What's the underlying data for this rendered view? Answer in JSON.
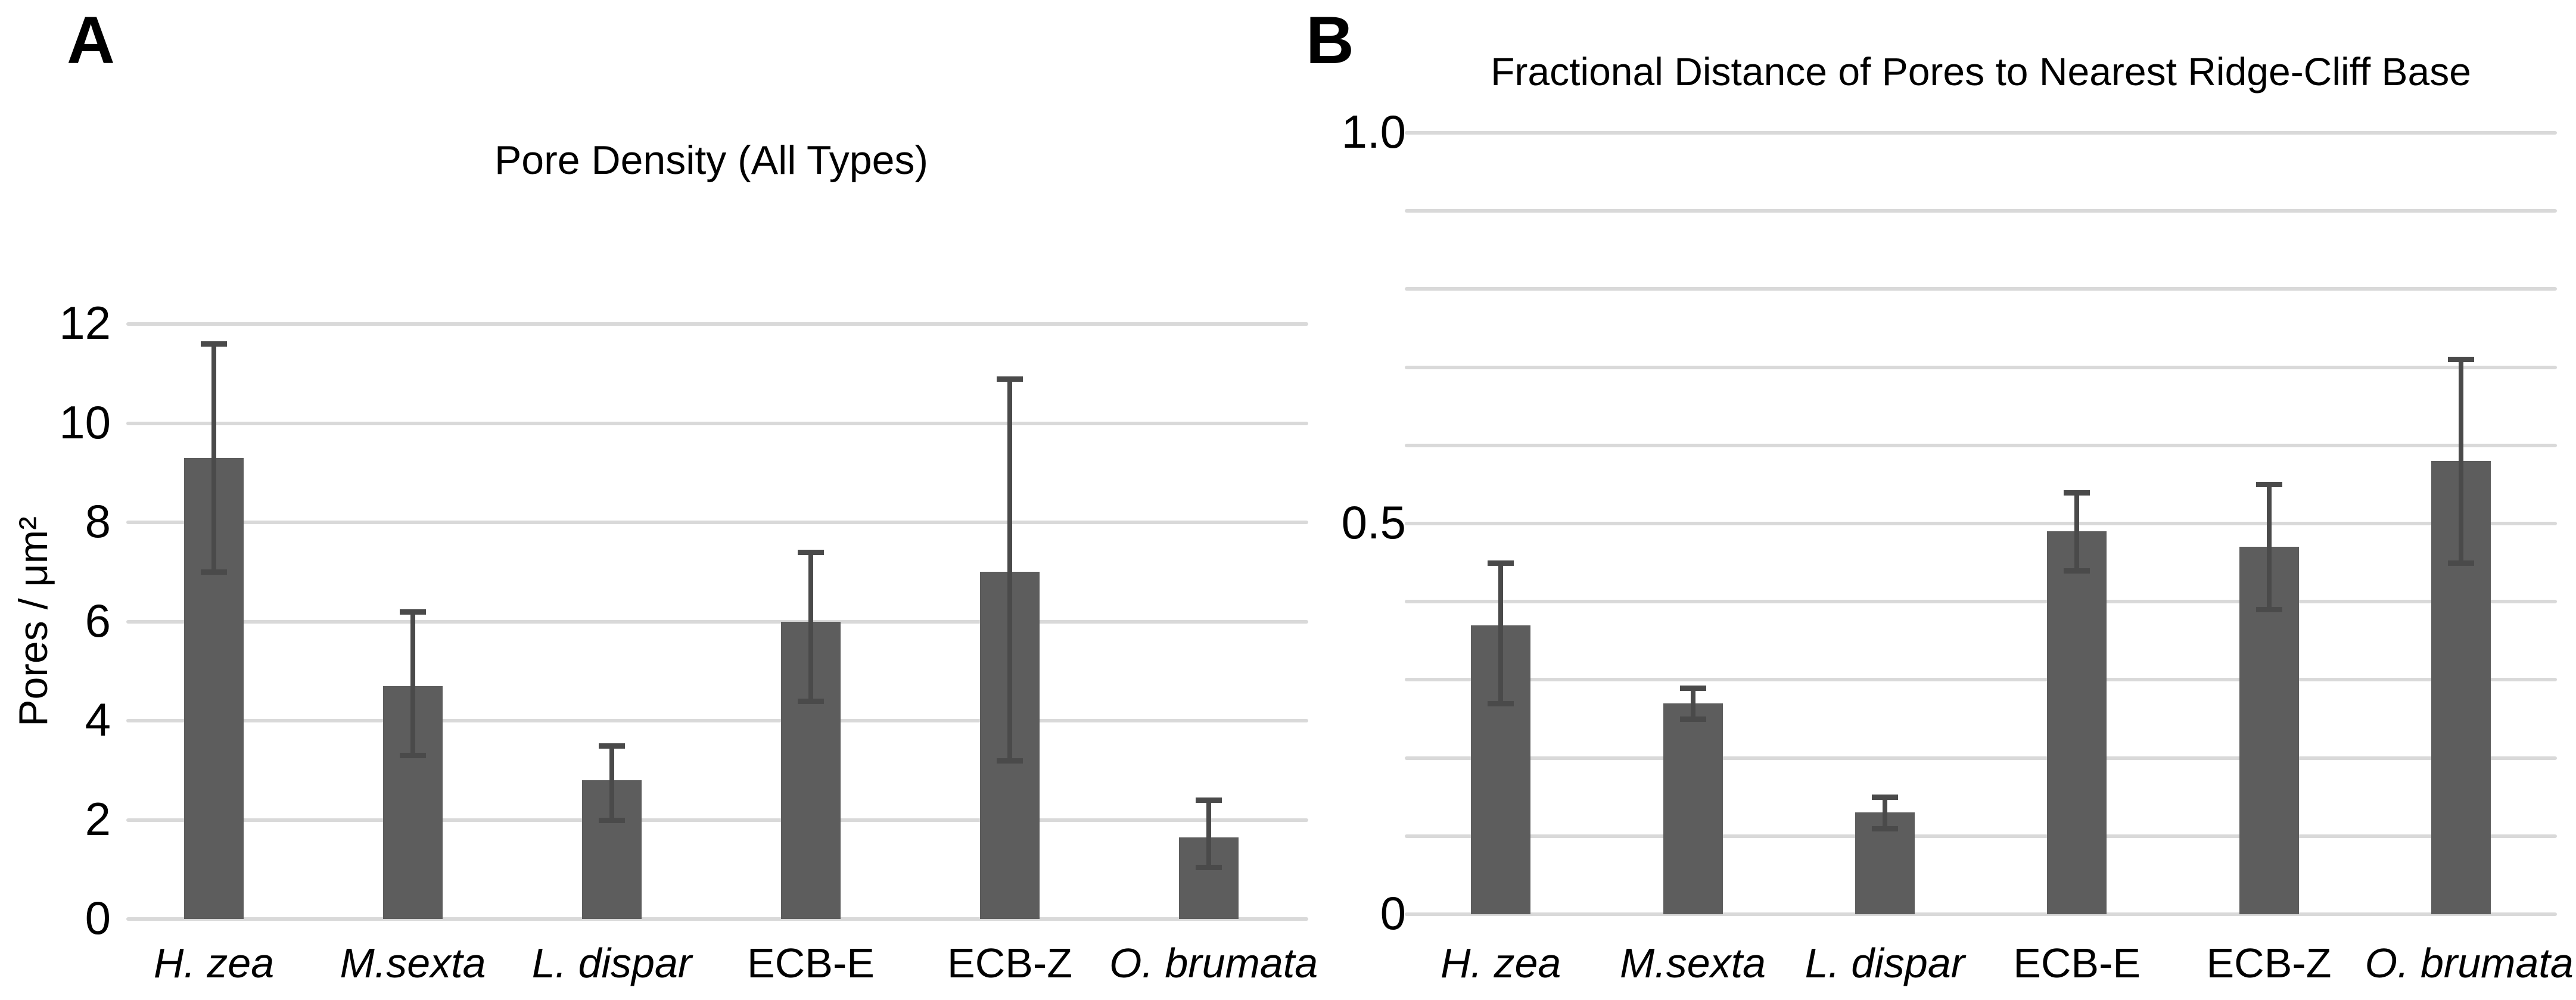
{
  "figure": {
    "background": "#ffffff",
    "bar_color": "#5d5d5d",
    "error_bar_color": "#4a4a4a",
    "gridline_color": "#d9d9d9",
    "text_color": "#000000"
  },
  "chart_data": [
    {
      "type": "bar",
      "panel_label": "A",
      "title": "Pore Density (All Types)",
      "ylabel": "Pores / μm²",
      "xlabel": "",
      "ylim": [
        0,
        12
      ],
      "grid": true,
      "legend": "none",
      "gridline_values": [
        0,
        2,
        4,
        6,
        8,
        10,
        12
      ],
      "ytick_values": [
        0,
        2,
        4,
        6,
        8,
        10,
        12
      ],
      "ytick_labels": [
        "0",
        "2",
        "4",
        "6",
        "8",
        "10",
        "12"
      ],
      "categories": [
        "H. zea",
        "M.sexta",
        "L. dispar",
        "ECB-E",
        "ECB-Z",
        "O. brumata"
      ],
      "categories_italic": [
        true,
        true,
        true,
        false,
        false,
        true
      ],
      "values": [
        9.3,
        4.7,
        2.8,
        6.0,
        7.0,
        1.65
      ],
      "error_low": [
        7.0,
        3.3,
        2.0,
        4.4,
        3.2,
        1.05
      ],
      "error_high": [
        11.6,
        6.2,
        3.5,
        7.4,
        10.9,
        2.4
      ]
    },
    {
      "type": "bar",
      "panel_label": "B",
      "title": "Fractional Distance of Pores to Nearest Ridge-Cliff Base",
      "ylabel": "",
      "xlabel": "",
      "ylim": [
        0,
        1.0
      ],
      "grid": true,
      "legend": "none",
      "gridline_values": [
        0,
        0.1,
        0.2,
        0.3,
        0.4,
        0.5,
        0.6,
        0.7,
        0.8,
        0.9,
        1.0
      ],
      "ytick_values": [
        0,
        0.5,
        1.0
      ],
      "ytick_labels": [
        "0",
        "0.5",
        "1.0"
      ],
      "categories": [
        "H. zea",
        "M.sexta",
        "L. dispar",
        "ECB-E",
        "ECB-Z",
        "O. brumata"
      ],
      "categories_italic": [
        true,
        true,
        true,
        false,
        false,
        true
      ],
      "values": [
        0.37,
        0.27,
        0.13,
        0.49,
        0.47,
        0.58
      ],
      "error_low": [
        0.27,
        0.25,
        0.11,
        0.44,
        0.39,
        0.45
      ],
      "error_high": [
        0.45,
        0.29,
        0.15,
        0.54,
        0.55,
        0.71
      ]
    }
  ]
}
